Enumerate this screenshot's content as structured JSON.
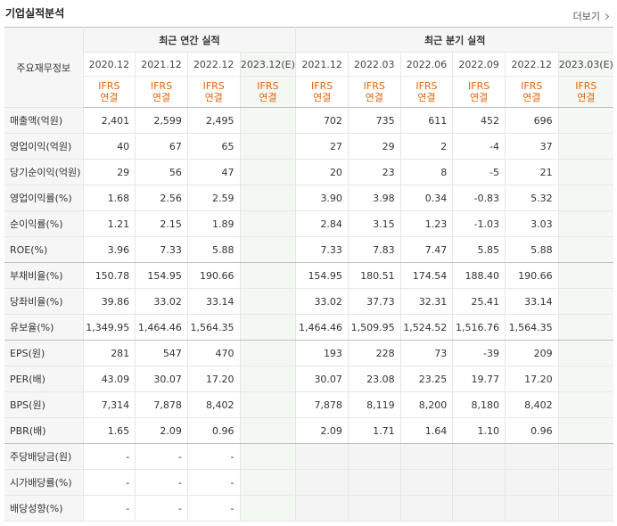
{
  "header": {
    "title": "기업실적분석",
    "more_label": "더보기"
  },
  "table": {
    "row_header_label": "주요재무정보",
    "annual_group_label": "최근 연간 실적",
    "quarter_group_label": "최근 분기 실적",
    "annual_periods": [
      "2020.12",
      "2021.12",
      "2022.12",
      "2023.12(E)"
    ],
    "quarter_periods": [
      "2021.12",
      "2022.03",
      "2022.06",
      "2022.09",
      "2022.12",
      "2023.03(E)"
    ],
    "basis_line1": "IFRS",
    "basis_line2": "연결",
    "rows": [
      {
        "label": "매출액(억원)",
        "annual": [
          "2,401",
          "2,599",
          "2,495",
          ""
        ],
        "quarter": [
          "702",
          "735",
          "611",
          "452",
          "696",
          ""
        ]
      },
      {
        "label": "영업이익(억원)",
        "annual": [
          "40",
          "67",
          "65",
          ""
        ],
        "quarter": [
          "27",
          "29",
          "2",
          "-4",
          "37",
          ""
        ]
      },
      {
        "label": "당기순이익(억원)",
        "annual": [
          "29",
          "56",
          "47",
          ""
        ],
        "quarter": [
          "20",
          "23",
          "8",
          "-5",
          "21",
          ""
        ]
      },
      {
        "label": "영업이익률(%)",
        "annual": [
          "1.68",
          "2.56",
          "2.59",
          ""
        ],
        "quarter": [
          "3.90",
          "3.98",
          "0.34",
          "-0.83",
          "5.32",
          ""
        ]
      },
      {
        "label": "순이익률(%)",
        "annual": [
          "1.21",
          "2.15",
          "1.89",
          ""
        ],
        "quarter": [
          "2.84",
          "3.15",
          "1.23",
          "-1.03",
          "3.03",
          ""
        ]
      },
      {
        "label": "ROE(%)",
        "annual": [
          "3.96",
          "7.33",
          "5.88",
          ""
        ],
        "quarter": [
          "7.33",
          "7.83",
          "7.47",
          "5.85",
          "5.88",
          ""
        ]
      },
      {
        "label": "부채비율(%)",
        "annual": [
          "150.78",
          "154.95",
          "190.66",
          ""
        ],
        "quarter": [
          "154.95",
          "180.51",
          "174.54",
          "188.40",
          "190.66",
          ""
        ]
      },
      {
        "label": "당좌비율(%)",
        "annual": [
          "39.86",
          "33.02",
          "33.14",
          ""
        ],
        "quarter": [
          "33.02",
          "37.73",
          "32.31",
          "25.41",
          "33.14",
          ""
        ]
      },
      {
        "label": "유보율(%)",
        "annual": [
          "1,349.95",
          "1,464.46",
          "1,564.35",
          ""
        ],
        "quarter": [
          "1,464.46",
          "1,509.95",
          "1,524.52",
          "1,516.76",
          "1,564.35",
          ""
        ]
      },
      {
        "label": "EPS(원)",
        "annual": [
          "281",
          "547",
          "470",
          ""
        ],
        "quarter": [
          "193",
          "228",
          "73",
          "-39",
          "209",
          ""
        ]
      },
      {
        "label": "PER(배)",
        "annual": [
          "43.09",
          "30.07",
          "17.20",
          ""
        ],
        "quarter": [
          "30.07",
          "23.08",
          "23.25",
          "19.77",
          "17.20",
          ""
        ]
      },
      {
        "label": "BPS(원)",
        "annual": [
          "7,314",
          "7,878",
          "8,402",
          ""
        ],
        "quarter": [
          "7,878",
          "8,119",
          "8,200",
          "8,180",
          "8,402",
          ""
        ]
      },
      {
        "label": "PBR(배)",
        "annual": [
          "1.65",
          "2.09",
          "0.96",
          ""
        ],
        "quarter": [
          "2.09",
          "1.71",
          "1.64",
          "1.10",
          "0.96",
          ""
        ]
      },
      {
        "label": "주당배당금(원)",
        "annual": [
          "-",
          "-",
          "-",
          ""
        ],
        "quarter": []
      },
      {
        "label": "시가배당률(%)",
        "annual": [
          "-",
          "-",
          "-",
          ""
        ],
        "quarter": []
      },
      {
        "label": "배당성향(%)",
        "annual": [
          "-",
          "-",
          "-",
          ""
        ],
        "quarter": []
      }
    ],
    "colors": {
      "negative": "#e0141e",
      "basis": "#e4650a",
      "estimate_bg": "#f3f8f3"
    }
  }
}
